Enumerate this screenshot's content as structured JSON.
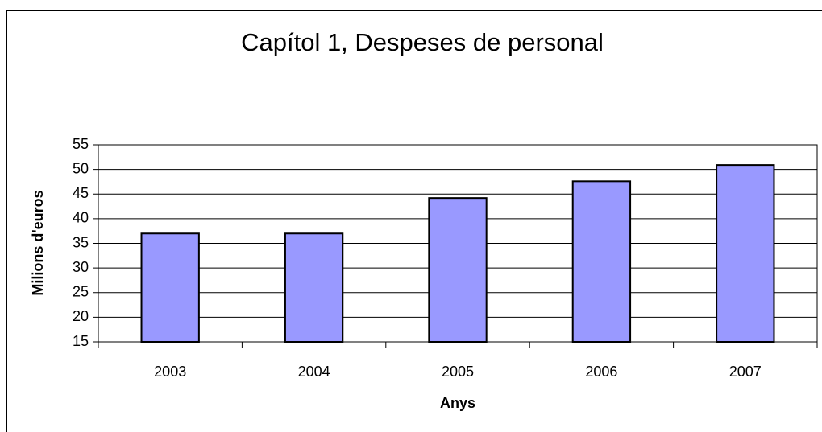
{
  "chart_data": {
    "type": "bar",
    "title": "Capítol 1, Despeses de personal",
    "x_label": "Anys",
    "y_label": "Milions d'euros",
    "categories": [
      "2003",
      "2004",
      "2005",
      "2006",
      "2007"
    ],
    "values": [
      37.0,
      37.0,
      44.2,
      47.6,
      50.9
    ],
    "color": "#9999ff",
    "ylim": [
      15,
      55
    ],
    "yticks": [
      15,
      20,
      25,
      30,
      35,
      40,
      45,
      50,
      55
    ],
    "grid": true
  }
}
